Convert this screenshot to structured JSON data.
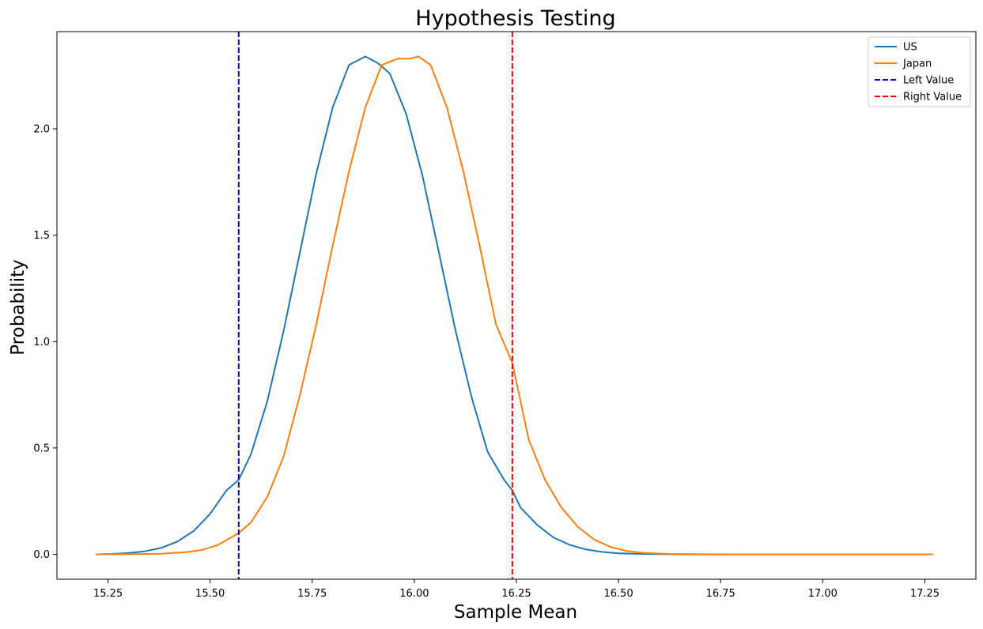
{
  "chart_data": {
    "type": "line",
    "title": "Hypothesis Testing",
    "xlabel": "Sample Mean",
    "ylabel": "Probability",
    "xlim": [
      15.125,
      17.375
    ],
    "ylim": [
      -0.117,
      2.457
    ],
    "xticks": [
      15.25,
      15.5,
      15.75,
      16.0,
      16.25,
      16.5,
      16.75,
      17.0,
      17.25
    ],
    "xtick_labels": [
      "15.25",
      "15.50",
      "15.75",
      "16.00",
      "16.25",
      "16.50",
      "16.75",
      "17.00",
      "17.25"
    ],
    "yticks": [
      0.0,
      0.5,
      1.0,
      1.5,
      2.0
    ],
    "ytick_labels": [
      "0.0",
      "0.5",
      "1.0",
      "1.5",
      "2.0"
    ],
    "grid": false,
    "legend_position": "top-right",
    "series": [
      {
        "name": "US",
        "color": "#1f77b4",
        "style": "solid",
        "x": [
          15.22,
          15.26,
          15.3,
          15.34,
          15.38,
          15.42,
          15.46,
          15.5,
          15.54,
          15.57,
          15.6,
          15.64,
          15.68,
          15.72,
          15.76,
          15.8,
          15.84,
          15.88,
          15.91,
          15.94,
          15.98,
          16.02,
          16.06,
          16.1,
          16.14,
          16.18,
          16.22,
          16.24,
          16.26,
          16.3,
          16.34,
          16.38,
          16.42,
          16.46,
          16.5,
          16.56,
          16.62,
          16.7,
          16.8,
          17.0,
          17.27
        ],
        "values": [
          0.0,
          0.002,
          0.006,
          0.014,
          0.03,
          0.06,
          0.11,
          0.19,
          0.3,
          0.35,
          0.47,
          0.72,
          1.05,
          1.42,
          1.79,
          2.1,
          2.3,
          2.34,
          2.31,
          2.26,
          2.07,
          1.78,
          1.42,
          1.06,
          0.74,
          0.48,
          0.35,
          0.3,
          0.22,
          0.14,
          0.08,
          0.045,
          0.023,
          0.011,
          0.005,
          0.002,
          0.0005,
          0.0,
          0.0,
          0.0,
          0.0
        ]
      },
      {
        "name": "Japan",
        "color": "#ff7f0e",
        "style": "solid",
        "x": [
          15.22,
          15.3,
          15.38,
          15.44,
          15.48,
          15.52,
          15.57,
          15.6,
          15.64,
          15.68,
          15.72,
          15.76,
          15.8,
          15.84,
          15.88,
          15.92,
          15.96,
          15.99,
          16.01,
          16.04,
          16.08,
          16.12,
          16.16,
          16.2,
          16.24,
          16.28,
          16.32,
          16.36,
          16.4,
          16.44,
          16.48,
          16.52,
          16.56,
          16.62,
          16.7,
          16.8,
          17.0,
          17.27
        ],
        "values": [
          0.0,
          0.001,
          0.003,
          0.01,
          0.02,
          0.045,
          0.1,
          0.15,
          0.27,
          0.46,
          0.75,
          1.08,
          1.45,
          1.8,
          2.1,
          2.3,
          2.33,
          2.33,
          2.34,
          2.3,
          2.1,
          1.8,
          1.45,
          1.08,
          0.9,
          0.54,
          0.35,
          0.22,
          0.13,
          0.07,
          0.035,
          0.016,
          0.007,
          0.002,
          0.0005,
          0.0,
          0.0,
          0.0
        ]
      },
      {
        "name": "Left Value",
        "color": "#0000cd",
        "style": "dashed",
        "vline_x": 15.57
      },
      {
        "name": "Right Value",
        "color": "#ff0000",
        "style": "dashed",
        "vline_x": 16.24
      }
    ]
  }
}
